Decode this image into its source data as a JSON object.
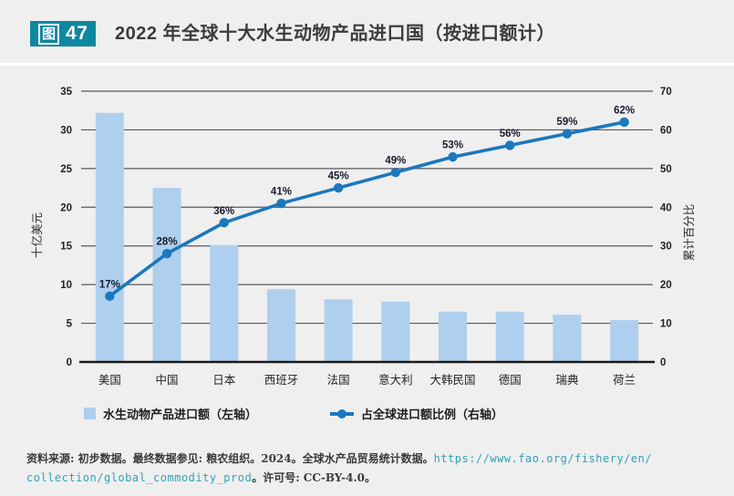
{
  "header": {
    "figure_label": "图",
    "figure_number": "47",
    "title": "2022 年全球十大水生动物产品进口国（按进口额计）"
  },
  "chart_data": {
    "type": "bar+line (Pareto)",
    "categories": [
      "美国",
      "中国",
      "日本",
      "西班牙",
      "法国",
      "意大利",
      "大韩民国",
      "德国",
      "瑞典",
      "荷兰"
    ],
    "series": [
      {
        "name": "水生动物产品进口额（左轴）",
        "type": "bar",
        "axis": "left",
        "values": [
          32.2,
          22.5,
          15.1,
          9.4,
          8.1,
          7.8,
          6.5,
          6.5,
          6.1,
          5.4
        ]
      },
      {
        "name": "占全球进口额比例（右轴）",
        "type": "line",
        "axis": "right",
        "values": [
          17,
          28,
          36,
          41,
          45,
          49,
          53,
          56,
          59,
          62
        ],
        "labels": [
          "17%",
          "28%",
          "36%",
          "41%",
          "45%",
          "49%",
          "53%",
          "56%",
          "59%",
          "62%"
        ]
      }
    ],
    "left_axis": {
      "label": "十亿美元",
      "min": 0,
      "max": 35,
      "ticks": [
        0,
        5,
        10,
        15,
        20,
        25,
        30,
        35
      ]
    },
    "right_axis": {
      "label": "累计百分比",
      "min": 0,
      "max": 70,
      "ticks": [
        0,
        10,
        20,
        30,
        40,
        50,
        60,
        70
      ]
    },
    "grid": true,
    "legend_position": "bottom",
    "colors": {
      "bar": "#aecfee",
      "line": "#1b78be",
      "grid": "#58595b",
      "axis": "#1a1a1a",
      "background": "#efefef",
      "badge_teal": "#0f87a0",
      "link_teal": "#2fa3b8"
    }
  },
  "legend": {
    "items": [
      {
        "label": "水生动物产品进口额（左轴）",
        "marker": "square"
      },
      {
        "label": "占全球进口额比例（右轴）",
        "marker": "line-dot"
      }
    ]
  },
  "source": {
    "prefix": "资料来源: 初步数据。最终数据参见: 粮农组织。2024。全球水产品贸易统计数据。",
    "url_line1": "https://www.fao.org/fishery/en/",
    "url_line2": "collection/global_commodity_prod",
    "suffix": "。许可号: CC-BY-4.0。"
  }
}
